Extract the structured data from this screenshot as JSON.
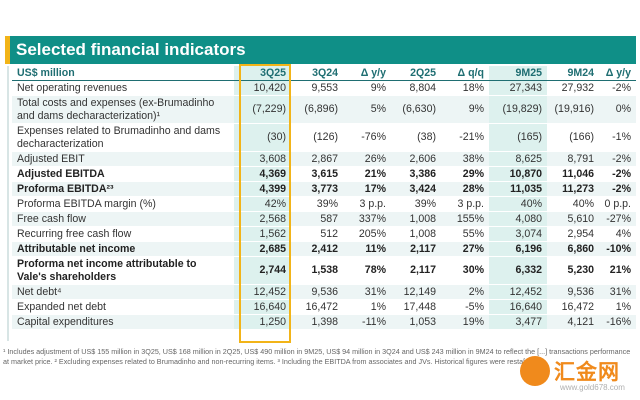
{
  "colors": {
    "header_teal": "#0f8f87",
    "accent_yellow": "#f2b418",
    "highlight_frame": "#f2b418",
    "column_shade": "#ddf1ee",
    "row_shade": "#edf5f5",
    "header_text": "#1f6e72"
  },
  "title": "Selected financial indicators",
  "table": {
    "columns": [
      "US$ million",
      "3Q25",
      "3Q24",
      "Δ y/y",
      "2Q25",
      "Δ q/q",
      "9M25",
      "9M24",
      "Δ y/y"
    ],
    "rows": [
      {
        "label": "Net operating revenues",
        "bold": false,
        "cells": [
          "10,420",
          "9,553",
          "9%",
          "8,804",
          "18%",
          "27,343",
          "27,932",
          "-2%"
        ]
      },
      {
        "label": "Total costs and expenses (ex-Brumadinho and dams decharacterization)¹",
        "bold": false,
        "cells": [
          "(7,229)",
          "(6,896)",
          "5%",
          "(6,630)",
          "9%",
          "(19,829)",
          "(19,916)",
          "0%"
        ]
      },
      {
        "label": "Expenses related to Brumadinho and dams decharacterization",
        "bold": false,
        "cells": [
          "(30)",
          "(126)",
          "-76%",
          "(38)",
          "-21%",
          "(165)",
          "(166)",
          "-1%"
        ]
      },
      {
        "label": "Adjusted EBIT",
        "bold": false,
        "cells": [
          "3,608",
          "2,867",
          "26%",
          "2,606",
          "38%",
          "8,625",
          "8,791",
          "-2%"
        ]
      },
      {
        "label": "Adjusted EBITDA",
        "bold": true,
        "cells": [
          "4,369",
          "3,615",
          "21%",
          "3,386",
          "29%",
          "10,870",
          "11,046",
          "-2%"
        ]
      },
      {
        "label": "Proforma EBITDA²³",
        "bold": true,
        "cells": [
          "4,399",
          "3,773",
          "17%",
          "3,424",
          "28%",
          "11,035",
          "11,273",
          "-2%"
        ]
      },
      {
        "label": "Proforma EBITDA margin (%)",
        "bold": false,
        "cells": [
          "42%",
          "39%",
          "3 p.p.",
          "39%",
          "3 p.p.",
          "40%",
          "40%",
          "0 p.p."
        ]
      },
      {
        "label": "Free cash flow",
        "bold": false,
        "cells": [
          "2,568",
          "587",
          "337%",
          "1,008",
          "155%",
          "4,080",
          "5,610",
          "-27%"
        ]
      },
      {
        "label": "Recurring free cash flow",
        "bold": false,
        "cells": [
          "1,562",
          "512",
          "205%",
          "1,008",
          "55%",
          "3,074",
          "2,954",
          "4%"
        ]
      },
      {
        "label": "Attributable net income",
        "bold": true,
        "cells": [
          "2,685",
          "2,412",
          "11%",
          "2,117",
          "27%",
          "6,196",
          "6,860",
          "-10%"
        ]
      },
      {
        "label": "Proforma net income attributable to Vale's shareholders",
        "bold": true,
        "cells": [
          "2,744",
          "1,538",
          "78%",
          "2,117",
          "30%",
          "6,332",
          "5,230",
          "21%"
        ]
      },
      {
        "label": "Net debt⁴",
        "bold": false,
        "cells": [
          "12,452",
          "9,536",
          "31%",
          "12,149",
          "2%",
          "12,452",
          "9,536",
          "31%"
        ]
      },
      {
        "label": "Expanded net debt",
        "bold": false,
        "cells": [
          "16,640",
          "16,472",
          "1%",
          "17,448",
          "-5%",
          "16,640",
          "16,472",
          "1%"
        ]
      },
      {
        "label": "Capital expenditures",
        "bold": false,
        "cells": [
          "1,250",
          "1,398",
          "-11%",
          "1,053",
          "19%",
          "3,477",
          "4,121",
          "-16%"
        ]
      }
    ]
  },
  "footnotes": {
    "line1": "¹ Includes adjustment of US$ 155 million in 3Q25, US$ 168 million in 2Q25, US$ 490 million in 9M25, US$ 94 million in 3Q24 and US$ 243 million in 9M24 to reflect the [...] transactions performance",
    "line2": "at market price. ² Excluding expenses related to Brumadinho and non-recurring items. ³ Including the EBITDA from associates and JVs. Historical figures were resta[...]"
  },
  "watermark": {
    "text": "汇金网",
    "url": "www.gold678.com"
  }
}
